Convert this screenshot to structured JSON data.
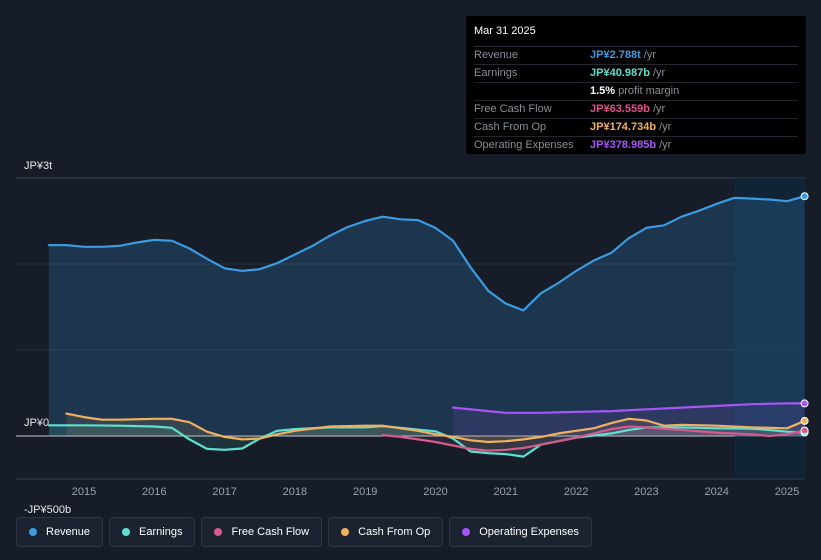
{
  "tooltip": {
    "date": "Mar 31 2025",
    "rows": [
      {
        "label": "Revenue",
        "value": "JP¥2.788t",
        "unit": "/yr",
        "color": "#3b9ae1"
      },
      {
        "label": "Earnings",
        "value": "JP¥40.987b",
        "unit": "/yr",
        "color": "#5ee0cf"
      },
      {
        "margin_value": "1.5%",
        "margin_label": "profit margin"
      },
      {
        "label": "Free Cash Flow",
        "value": "JP¥63.559b",
        "unit": "/yr",
        "color": "#e0508a"
      },
      {
        "label": "Cash From Op",
        "value": "JP¥174.734b",
        "unit": "/yr",
        "color": "#f0b060"
      },
      {
        "label": "Operating Expenses",
        "value": "JP¥378.985b",
        "unit": "/yr",
        "color": "#a855f7"
      }
    ]
  },
  "legend": [
    {
      "label": "Revenue",
      "color": "#3b9ae1"
    },
    {
      "label": "Earnings",
      "color": "#5ee0cf"
    },
    {
      "label": "Free Cash Flow",
      "color": "#d65a8c"
    },
    {
      "label": "Cash From Op",
      "color": "#f0b060"
    },
    {
      "label": "Operating Expenses",
      "color": "#a855f7"
    }
  ],
  "chart_data": {
    "type": "line",
    "title": "",
    "y_tick_labels": [
      "JP¥3t",
      "JP¥0",
      "-JP¥500b"
    ],
    "ylim": [
      -500,
      3000
    ],
    "xlim": [
      2014.5,
      2025.25
    ],
    "x_ticks": [
      2015,
      2016,
      2017,
      2018,
      2019,
      2020,
      2021,
      2022,
      2023,
      2024,
      2025
    ],
    "x_tick_labels": [
      "2015",
      "2016",
      "2017",
      "2018",
      "2019",
      "2020",
      "2021",
      "2022",
      "2023",
      "2024",
      "2025"
    ],
    "forecast_start": 2024.25,
    "series": [
      {
        "name": "Revenue",
        "color": "#3b9ae1",
        "fill": true,
        "x": [
          2014.5,
          2014.75,
          2015.0,
          2015.25,
          2015.5,
          2015.75,
          2016.0,
          2016.25,
          2016.5,
          2016.75,
          2017.0,
          2017.25,
          2017.5,
          2017.75,
          2018.0,
          2018.25,
          2018.5,
          2018.75,
          2019.0,
          2019.25,
          2019.5,
          2019.75,
          2020.0,
          2020.25,
          2020.5,
          2020.75,
          2021.0,
          2021.25,
          2021.5,
          2021.75,
          2022.0,
          2022.25,
          2022.5,
          2022.75,
          2023.0,
          2023.25,
          2023.5,
          2023.75,
          2024.0,
          2024.25,
          2024.5,
          2024.75,
          2025.0,
          2025.25
        ],
        "values": [
          2220,
          2220,
          2200,
          2200,
          2210,
          2250,
          2280,
          2270,
          2180,
          2060,
          1950,
          1920,
          1940,
          2010,
          2110,
          2210,
          2330,
          2430,
          2500,
          2550,
          2520,
          2510,
          2420,
          2270,
          1960,
          1690,
          1540,
          1460,
          1660,
          1780,
          1920,
          2040,
          2130,
          2300,
          2420,
          2450,
          2550,
          2620,
          2700,
          2770,
          2760,
          2750,
          2730,
          2788
        ]
      },
      {
        "name": "Earnings",
        "color": "#5ee0cf",
        "fill": true,
        "x": [
          2014.5,
          2015.0,
          2015.5,
          2016.0,
          2016.25,
          2016.5,
          2016.75,
          2017.0,
          2017.25,
          2017.5,
          2017.75,
          2018.0,
          2018.5,
          2019.0,
          2019.25,
          2019.5,
          2020.0,
          2020.25,
          2020.5,
          2020.75,
          2021.0,
          2021.25,
          2021.5,
          2021.75,
          2022.0,
          2022.5,
          2022.75,
          2023.0,
          2023.5,
          2024.0,
          2024.5,
          2024.75,
          2025.0,
          2025.25
        ],
        "values": [
          125,
          125,
          120,
          110,
          95,
          -40,
          -150,
          -160,
          -145,
          -30,
          60,
          80,
          100,
          100,
          115,
          95,
          55,
          -30,
          -180,
          -200,
          -210,
          -240,
          -100,
          -60,
          -20,
          30,
          70,
          100,
          100,
          90,
          85,
          70,
          50,
          41
        ]
      },
      {
        "name": "Free Cash Flow",
        "color": "#d65a8c",
        "fill": true,
        "x": [
          2019.25,
          2019.5,
          2019.75,
          2020.0,
          2020.25,
          2020.5,
          2020.75,
          2021.0,
          2021.25,
          2021.5,
          2021.75,
          2022.0,
          2022.25,
          2022.5,
          2022.75,
          2023.0,
          2023.5,
          2024.0,
          2024.5,
          2024.75,
          2025.0,
          2025.25
        ],
        "values": [
          10,
          -10,
          -40,
          -70,
          -110,
          -150,
          -170,
          -160,
          -140,
          -100,
          -60,
          -20,
          30,
          80,
          110,
          100,
          70,
          40,
          20,
          0,
          20,
          64
        ]
      },
      {
        "name": "Cash From Op",
        "color": "#f0b060",
        "fill": true,
        "x": [
          2014.75,
          2015.0,
          2015.25,
          2015.5,
          2016.0,
          2016.25,
          2016.5,
          2016.75,
          2017.0,
          2017.25,
          2017.5,
          2017.75,
          2018.0,
          2018.5,
          2019.0,
          2019.25,
          2019.5,
          2019.75,
          2020.0,
          2020.25,
          2020.5,
          2020.75,
          2021.0,
          2021.25,
          2021.5,
          2021.75,
          2022.0,
          2022.25,
          2022.5,
          2022.75,
          2023.0,
          2023.25,
          2023.5,
          2024.0,
          2024.5,
          2025.0,
          2025.25
        ],
        "values": [
          260,
          220,
          190,
          190,
          200,
          200,
          160,
          50,
          -10,
          -40,
          -30,
          20,
          60,
          110,
          120,
          120,
          90,
          60,
          20,
          -10,
          -50,
          -70,
          -60,
          -40,
          -10,
          30,
          60,
          90,
          150,
          200,
          180,
          120,
          130,
          120,
          100,
          90,
          175
        ]
      },
      {
        "name": "Operating Expenses",
        "color": "#a855f7",
        "fill": true,
        "x": [
          2020.25,
          2020.5,
          2020.75,
          2021.0,
          2021.5,
          2022.0,
          2022.5,
          2023.0,
          2023.5,
          2024.0,
          2024.5,
          2025.0,
          2025.25
        ],
        "values": [
          330,
          310,
          290,
          270,
          270,
          280,
          290,
          310,
          330,
          350,
          370,
          380,
          379
        ]
      }
    ]
  }
}
